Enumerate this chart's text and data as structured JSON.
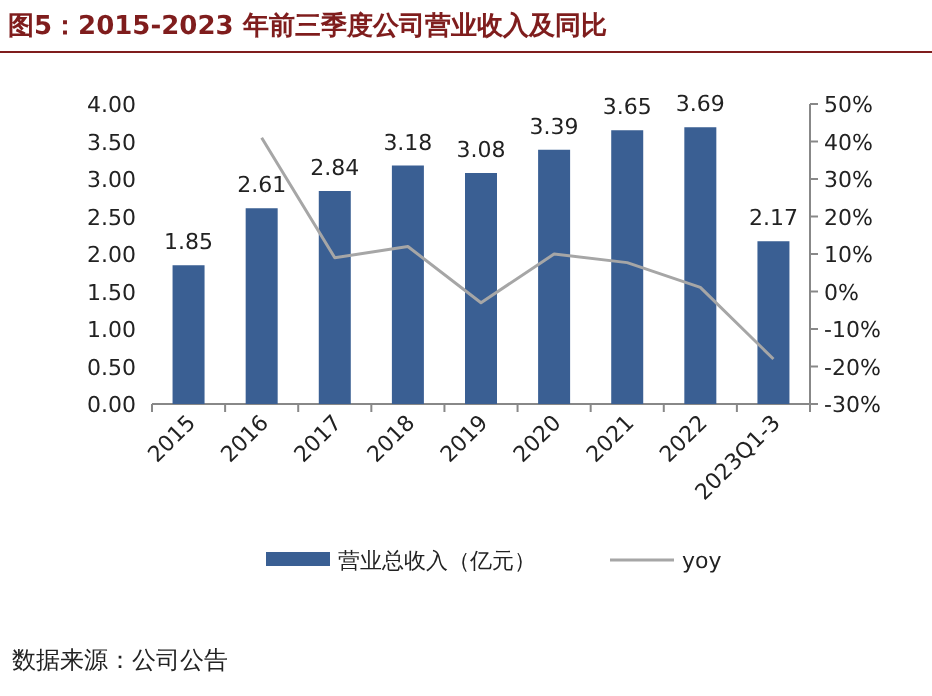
{
  "chart_data": {
    "type": "bar",
    "title": "图5：2015-2023 年前三季度公司营业收入及同比",
    "categories": [
      "2015",
      "2016",
      "2017",
      "2018",
      "2019",
      "2020",
      "2021",
      "2022",
      "2023Q1-3"
    ],
    "series": [
      {
        "name": "营业总收入（亿元）",
        "color": "#3a5f93",
        "values": [
          1.85,
          2.61,
          2.84,
          3.18,
          3.08,
          3.39,
          3.65,
          3.69,
          2.17
        ],
        "value_labels": [
          "1.85",
          "2.61",
          "2.84",
          "3.18",
          "3.08",
          "3.39",
          "3.65",
          "3.69",
          "2.17"
        ]
      },
      {
        "name": "yoy",
        "type": "line",
        "axis": "y2",
        "color": "#a6a6a6",
        "values": [
          null,
          41,
          9,
          12,
          -3,
          10,
          7.7,
          1.1,
          -18
        ]
      }
    ],
    "ylim": [
      0,
      4
    ],
    "yticks": [
      {
        "value": 0,
        "label": "0.00"
      },
      {
        "value": 0.5,
        "label": "0.50"
      },
      {
        "value": 1,
        "label": "1.00"
      },
      {
        "value": 1.5,
        "label": "1.50"
      },
      {
        "value": 2,
        "label": "2.00"
      },
      {
        "value": 2.5,
        "label": "2.50"
      },
      {
        "value": 3,
        "label": "3.00"
      },
      {
        "value": 3.5,
        "label": "3.50"
      },
      {
        "value": 4,
        "label": "4.00"
      }
    ],
    "y2lim": [
      -30,
      50
    ],
    "y2ticks": [
      {
        "value": -30,
        "label": "-30%"
      },
      {
        "value": -20,
        "label": "-20%"
      },
      {
        "value": -10,
        "label": "-10%"
      },
      {
        "value": 0,
        "label": "0%"
      },
      {
        "value": 10,
        "label": "10%"
      },
      {
        "value": 20,
        "label": "20%"
      },
      {
        "value": 30,
        "label": "30%"
      },
      {
        "value": 40,
        "label": "40%"
      },
      {
        "value": 50,
        "label": "50%"
      }
    ],
    "legend": "bottom",
    "grid": false,
    "marker": "none",
    "annotations": [
      "数据来源：公司公告"
    ]
  }
}
